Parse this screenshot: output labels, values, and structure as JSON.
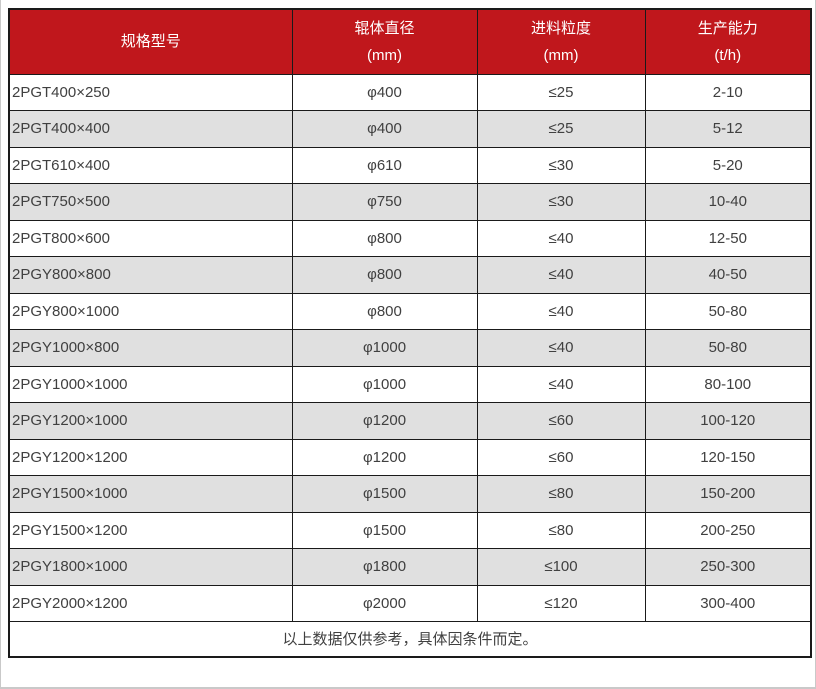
{
  "colors": {
    "header_bg": "#c0171c",
    "header_text": "#ffffff",
    "row_alt_bg": "#e0e0e0",
    "border": "#1a1a1a",
    "body_text": "#404040"
  },
  "table": {
    "columns": [
      {
        "label": "规格型号",
        "unit": ""
      },
      {
        "label": "辊体直径",
        "unit": "(mm)"
      },
      {
        "label": "进料粒度",
        "unit": "(mm)"
      },
      {
        "label": "生产能力",
        "unit": "(t/h)"
      }
    ],
    "rows": [
      [
        "2PGT400×250",
        "φ400",
        "≤25",
        "2-10"
      ],
      [
        "2PGT400×400",
        "φ400",
        "≤25",
        "5-12"
      ],
      [
        "2PGT610×400",
        "φ610",
        "≤30",
        "5-20"
      ],
      [
        "2PGT750×500",
        "φ750",
        "≤30",
        "10-40"
      ],
      [
        "2PGT800×600",
        "φ800",
        "≤40",
        "12-50"
      ],
      [
        "2PGY800×800",
        "φ800",
        "≤40",
        "40-50"
      ],
      [
        "2PGY800×1000",
        "φ800",
        "≤40",
        "50-80"
      ],
      [
        "2PGY1000×800",
        "φ1000",
        "≤40",
        "50-80"
      ],
      [
        "2PGY1000×1000",
        "φ1000",
        "≤40",
        "80-100"
      ],
      [
        "2PGY1200×1000",
        "φ1200",
        "≤60",
        "100-120"
      ],
      [
        "2PGY1200×1200",
        "φ1200",
        "≤60",
        "120-150"
      ],
      [
        "2PGY1500×1000",
        "φ1500",
        "≤80",
        "150-200"
      ],
      [
        "2PGY1500×1200",
        "φ1500",
        "≤80",
        "200-250"
      ],
      [
        "2PGY1800×1000",
        "φ1800",
        "≤100",
        "250-300"
      ],
      [
        "2PGY2000×1200",
        "φ2000",
        "≤120",
        "300-400"
      ]
    ],
    "footnote": "以上数据仅供参考，具体因条件而定。"
  }
}
